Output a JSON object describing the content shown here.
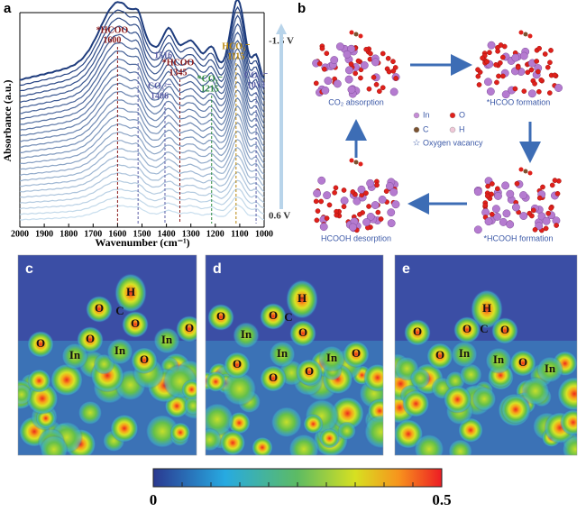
{
  "panel_a": {
    "label": "a",
    "y_axis_title": "Absorbance (a.u.)",
    "x_axis_title": "Wavenumber (cm⁻¹)",
    "xlim": [
      2000,
      1000
    ],
    "xticks": [
      2000,
      1900,
      1800,
      1700,
      1600,
      1500,
      1400,
      1300,
      1200,
      1100,
      1000
    ],
    "peaks": [
      {
        "name": "*HCOO",
        "value": 1600,
        "color": "#8b1a1a"
      },
      {
        "value": 1516,
        "color": "#5b5ea6"
      },
      {
        "name": "CO₃²⁻",
        "value": 1406,
        "color": "#5b5ea6"
      },
      {
        "name": "*HCOO",
        "value": 1345,
        "color": "#8b1a1a"
      },
      {
        "name": "*CO₂⁻",
        "value": 1215,
        "color": "#2e8b3e"
      },
      {
        "name": "HCO₃⁻",
        "value": 1115,
        "color": "#b8860b"
      },
      {
        "name": "CO₃²⁻",
        "value": 1033,
        "color": "#5b5ea6"
      }
    ],
    "potential_top": "-1.5 V",
    "potential_bottom": "0.6 V"
  },
  "panel_b": {
    "label": "b",
    "steps": [
      "CO₂ absorption",
      "*HCOO formation",
      "*HCOOH formation",
      "HCOOH desorption"
    ],
    "legend": [
      "In",
      "O",
      "C",
      "H",
      "Oxygen vacancy"
    ]
  },
  "panels_elf": [
    {
      "label": "c",
      "atoms": [
        "H",
        "O",
        "C",
        "O",
        "O",
        "O",
        "In",
        "In",
        "O",
        "In",
        "O"
      ]
    },
    {
      "label": "d",
      "atoms": [
        "H",
        "O",
        "C",
        "O",
        "O",
        "In",
        "In",
        "O",
        "O",
        "O",
        "In",
        "O"
      ]
    },
    {
      "label": "e",
      "atoms": [
        "H",
        "O",
        "C",
        "O",
        "O",
        "O",
        "In",
        "In",
        "O",
        "In"
      ]
    }
  ],
  "colorbar": {
    "min": 0,
    "max": 0.5
  }
}
